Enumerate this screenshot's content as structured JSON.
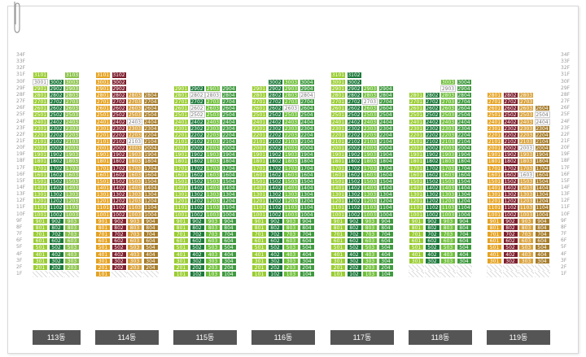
{
  "floors": [
    "34F",
    "33F",
    "32F",
    "31F",
    "30F",
    "29F",
    "28F",
    "27F",
    "26F",
    "25F",
    "24F",
    "23F",
    "22F",
    "21F",
    "20F",
    "19F",
    "18F",
    "17F",
    "16F",
    "15F",
    "14F",
    "13F",
    "12F",
    "11F",
    "10F",
    "9F",
    "8F",
    "7F",
    "6F",
    "5F",
    "4F",
    "3F",
    "2F",
    "1F"
  ],
  "buildings": [
    {
      "label": "113동",
      "lines": [
        1,
        2,
        3
      ],
      "top": [
        31,
        30,
        31
      ],
      "bottom": [
        2,
        2,
        2
      ],
      "palette": [
        "#9acd32",
        "#1e7a3c",
        "#8bc34a"
      ]
    },
    {
      "label": "114동",
      "lines": [
        1,
        2,
        3,
        4
      ],
      "top": [
        31,
        31,
        28,
        28
      ],
      "bottom": [
        1,
        2,
        2,
        2
      ],
      "palette": [
        "#e5a323",
        "#7e1f2e",
        "#d9a23c",
        "#a67c2a"
      ]
    },
    {
      "label": "115동",
      "lines": [
        1,
        2,
        3,
        4
      ],
      "top": [
        29,
        29,
        29,
        29
      ],
      "bottom": [
        1,
        1,
        1,
        1
      ],
      "palette": [
        "#9acd32",
        "#1e7a3c",
        "#6fbf3a",
        "#3f9a3f"
      ]
    },
    {
      "label": "116동",
      "lines": [
        1,
        2,
        3,
        4
      ],
      "top": [
        29,
        30,
        30,
        30
      ],
      "bottom": [
        1,
        1,
        1,
        1
      ],
      "palette": [
        "#9acd32",
        "#1e7a3c",
        "#6fbf3a",
        "#3f9a3f"
      ]
    },
    {
      "label": "117동",
      "lines": [
        1,
        2,
        3,
        4
      ],
      "top": [
        31,
        31,
        29,
        29
      ],
      "bottom": [
        1,
        1,
        1,
        1
      ],
      "palette": [
        "#9acd32",
        "#1e7a3c",
        "#6fbf3a",
        "#3f9a3f"
      ]
    },
    {
      "label": "118동",
      "lines": [
        1,
        2,
        3,
        4
      ],
      "top": [
        28,
        28,
        30,
        30
      ],
      "bottom": [
        3,
        3,
        3,
        3
      ],
      "palette": [
        "#9acd32",
        "#1e7a3c",
        "#6fbf3a",
        "#3f9a3f"
      ]
    },
    {
      "label": "119동",
      "lines": [
        1,
        2,
        3,
        4
      ],
      "top": [
        28,
        28,
        28,
        26
      ],
      "bottom": [
        3,
        3,
        3,
        3
      ],
      "palette": [
        "#e5a323",
        "#7e1f2e",
        "#d9a23c",
        "#a67c2a"
      ]
    }
  ],
  "colors": {
    "label_bg": "#555555",
    "pale": "#ffffff"
  }
}
